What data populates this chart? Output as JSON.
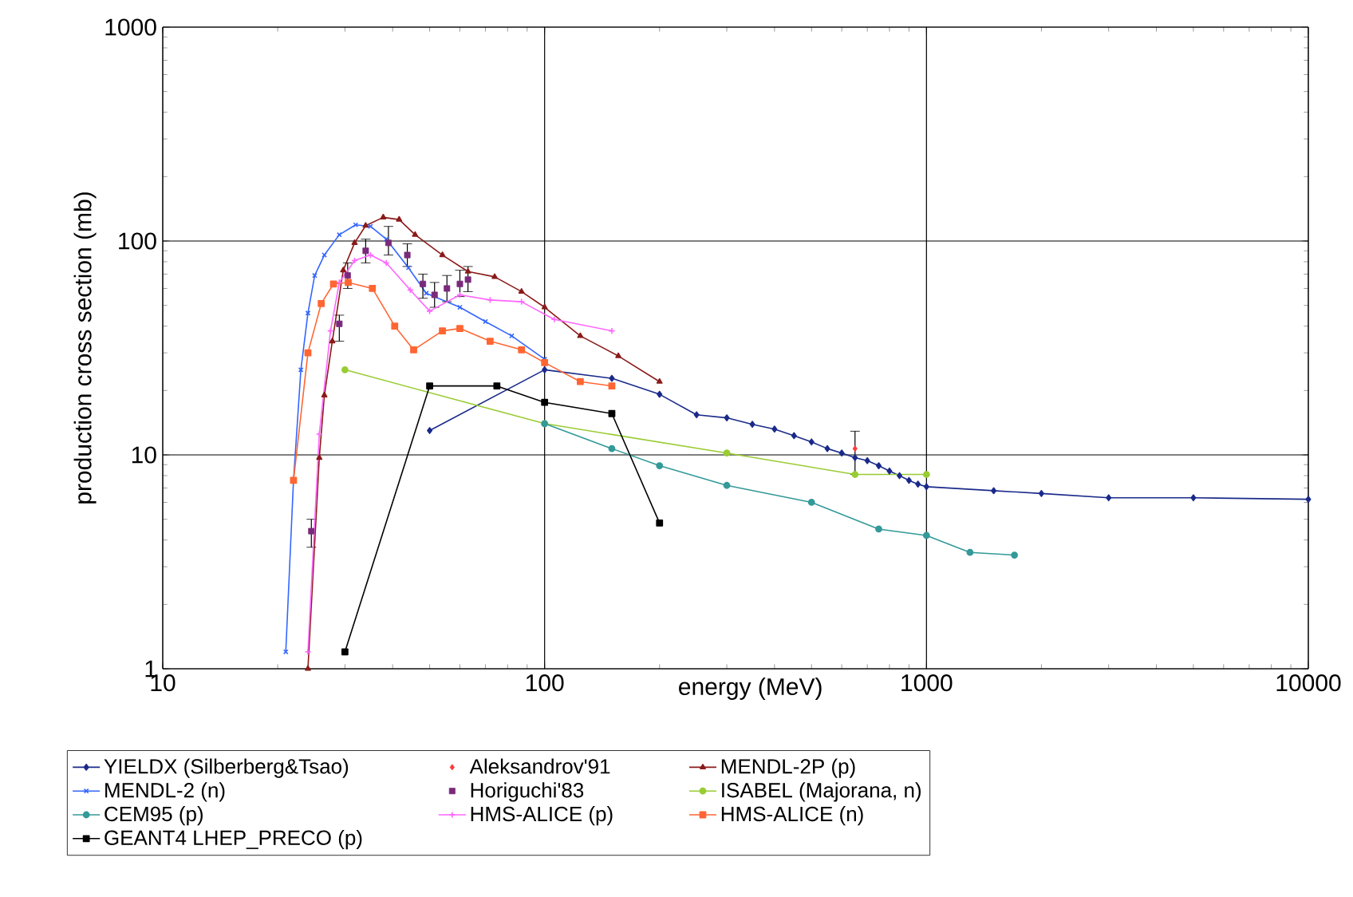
{
  "chart_data": {
    "type": "line",
    "xlabel": "energy (MeV)",
    "ylabel": "production cross section (mb)",
    "log": "xy",
    "grid": true,
    "legend": "bottom",
    "xlim": [
      10,
      10000
    ],
    "ylim": [
      1,
      1000
    ],
    "xticks": [
      10,
      100,
      1000,
      10000
    ],
    "yticks": [
      1,
      10,
      100,
      1000
    ],
    "series": [
      {
        "name": "YIELDX (Silberberg&Tsao)",
        "marker": "diamond",
        "color": "#1a2a8a",
        "x": [
          50,
          100,
          150,
          200,
          250,
          300,
          350,
          400,
          450,
          500,
          550,
          600,
          650,
          700,
          750,
          800,
          850,
          900,
          950,
          1000,
          1500,
          2000,
          3000,
          5000,
          10000
        ],
        "values": [
          13,
          25,
          22.8,
          19.2,
          15.4,
          14.9,
          13.9,
          13.2,
          12.3,
          11.5,
          10.7,
          10.2,
          9.7,
          9.4,
          8.9,
          8.4,
          8.0,
          7.6,
          7.3,
          7.1,
          6.8,
          6.6,
          6.3,
          6.3,
          6.2
        ]
      },
      {
        "name": "Aleksandrov'91",
        "type": "scatter",
        "marker": "diamond",
        "color": "#ff3b3b",
        "x": [
          650
        ],
        "values": [
          10.7
        ],
        "errors": [
          [
            8.1,
            12.9
          ]
        ]
      },
      {
        "name": "MENDL-2P (p)",
        "marker": "triangle",
        "color": "#8b1a1a",
        "x": [
          24,
          25.7,
          26.5,
          27.8,
          29.7,
          31.8,
          34,
          37.8,
          41.6,
          45.8,
          54,
          63,
          74,
          87,
          100,
          124,
          156,
          200
        ],
        "values": [
          1,
          9.7,
          19,
          34,
          73,
          98,
          118,
          129,
          126,
          107,
          86,
          72,
          68,
          58,
          49,
          36,
          29,
          22
        ]
      },
      {
        "name": "MENDL-2 (n)",
        "marker": "cross",
        "color": "#3366ff",
        "x": [
          21,
          22,
          23,
          24,
          25,
          26.5,
          29,
          32,
          35,
          38.5,
          44,
          49,
          60,
          70,
          82,
          100
        ],
        "values": [
          1.2,
          7.6,
          25,
          46,
          69,
          86,
          107,
          119,
          117,
          102,
          75,
          57,
          49,
          42,
          36,
          28
        ]
      },
      {
        "name": "Horiguchi'83",
        "type": "scatter",
        "marker": "square",
        "color": "#7a2a7a",
        "x": [
          24.5,
          29,
          30.5,
          34,
          39,
          43.7,
          48,
          51.5,
          55.5,
          60,
          63
        ],
        "values": [
          4.4,
          41,
          69,
          90,
          98,
          86,
          63,
          56,
          60,
          63,
          66
        ],
        "errors": [
          [
            3.7,
            5.0
          ],
          [
            34,
            45
          ],
          [
            60,
            79
          ],
          [
            79,
            102
          ],
          [
            86,
            117
          ],
          [
            76,
            97
          ],
          [
            54,
            70
          ],
          [
            49,
            64
          ],
          [
            52,
            69
          ],
          [
            55,
            73
          ],
          [
            58,
            76
          ]
        ]
      },
      {
        "name": "ISABEL (Majorana, n)",
        "marker": "circle",
        "color": "#99cc33",
        "x": [
          30,
          100,
          300,
          650,
          1000
        ],
        "values": [
          25,
          14,
          10.2,
          8.1,
          8.1
        ]
      },
      {
        "name": "CEM95 (p)",
        "marker": "circle",
        "color": "#339999",
        "x": [
          100,
          150,
          200,
          300,
          500,
          750,
          1000,
          1300,
          1700
        ],
        "values": [
          14,
          10.7,
          8.9,
          7.2,
          6.0,
          4.5,
          4.2,
          3.5,
          3.4
        ]
      },
      {
        "name": "HMS-ALICE (p)",
        "marker": "plus",
        "color": "#ff66ff",
        "x": [
          24,
          25.7,
          27.5,
          29,
          31.8,
          35,
          38.5,
          44.5,
          50,
          60,
          72,
          87,
          106,
          150
        ],
        "values": [
          1.2,
          12.5,
          38,
          64,
          81,
          86,
          79,
          59,
          47,
          56,
          53,
          52,
          43,
          38
        ]
      },
      {
        "name": "HMS-ALICE (n)",
        "marker": "square",
        "color": "#ff6633",
        "x": [
          22,
          24,
          26,
          28,
          30.6,
          35.4,
          40.5,
          45.4,
          54,
          60,
          72,
          87,
          100,
          124,
          150
        ],
        "values": [
          7.6,
          30,
          51,
          63,
          64,
          60,
          40,
          31,
          38,
          39,
          34,
          31,
          27,
          22,
          21
        ]
      },
      {
        "name": "GEANT4 LHEP_PRECO (p)",
        "marker": "square",
        "color": "#000000",
        "x": [
          30,
          50,
          75,
          100,
          150,
          200
        ],
        "values": [
          1.2,
          21,
          21,
          17.6,
          15.6,
          4.8
        ]
      }
    ]
  }
}
